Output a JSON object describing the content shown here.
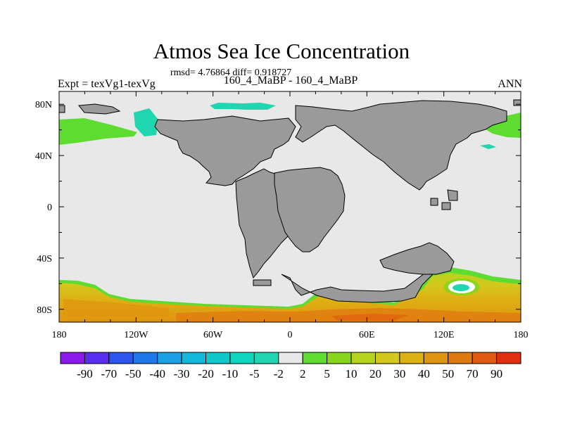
{
  "header": {
    "title": "Atmos Sea Ice Concentration",
    "stats": "rmsd= 4.76864 diff= 0.918727",
    "expt": "Expt = texVg1-texVg",
    "runs": "160_4_MaBP - 160_4_MaBP",
    "season": "ANN"
  },
  "chart_data": {
    "type": "heatmap",
    "title": "Atmos Sea Ice Concentration",
    "subtitle": "rmsd= 4.76864 diff= 0.918727",
    "xlabel": "",
    "ylabel": "",
    "xlim": [
      -180,
      180
    ],
    "ylim": [
      -90,
      90
    ],
    "x_ticks": [
      -180,
      -120,
      -60,
      0,
      60,
      120,
      180
    ],
    "x_tick_labels": [
      "180",
      "120W",
      "60W",
      "0",
      "60E",
      "120E",
      "180"
    ],
    "y_ticks": [
      80,
      40,
      0,
      -40,
      -80
    ],
    "y_tick_labels": [
      "80N",
      "40N",
      "0",
      "40S",
      "80S"
    ],
    "land_color": "#9a9a9a",
    "ocean_background": "#e8e8e8",
    "colorbar": {
      "levels": [
        "-90",
        "-70",
        "-50",
        "-40",
        "-30",
        "-20",
        "-10",
        "-5",
        "-2",
        "2",
        "5",
        "10",
        "20",
        "30",
        "40",
        "50",
        "70",
        "90"
      ],
      "colors": [
        "#8c1aed",
        "#5a2ef0",
        "#2a55ee",
        "#1f78ea",
        "#1aa0e6",
        "#14b8dc",
        "#10c8cc",
        "#0fd6bf",
        "#20d6b0",
        "#e8e8e8",
        "#5edc32",
        "#88d61c",
        "#b6d41e",
        "#d4c81c",
        "#ddb014",
        "#e09410",
        "#e07a10",
        "#e05a10",
        "#e02e10"
      ]
    },
    "regions": [
      {
        "name": "Southern Ocean belt",
        "lon": [
          -180,
          180
        ],
        "lat": [
          -90,
          -58
        ],
        "value": "10 to 70",
        "max_region": "60E, 82S"
      },
      {
        "name": "Local negative anomaly near 130E",
        "lon": [
          123,
          137
        ],
        "lat": [
          -70,
          -64
        ],
        "value": "-2 to 2"
      },
      {
        "name": "Bering Sea / North Pacific",
        "lon": [
          -180,
          -130
        ],
        "lat": [
          55,
          72
        ],
        "value": "5 to 10"
      },
      {
        "name": "Beaufort Sea",
        "lon": [
          -145,
          -128
        ],
        "lat": [
          64,
          75
        ],
        "value": "-5 to -2"
      },
      {
        "name": "Arctic near 75N 60W",
        "lon": [
          -70,
          -25
        ],
        "lat": [
          78,
          85
        ],
        "value": "-5 to -2"
      },
      {
        "name": "Okhotsk / East Siberia",
        "lon": [
          140,
          180
        ],
        "lat": [
          55,
          72
        ],
        "value": "5 to 10"
      },
      {
        "name": "East Asia coastal",
        "lon": [
          145,
          160
        ],
        "lat": [
          47,
          52
        ],
        "value": "-5 to -2"
      }
    ]
  }
}
